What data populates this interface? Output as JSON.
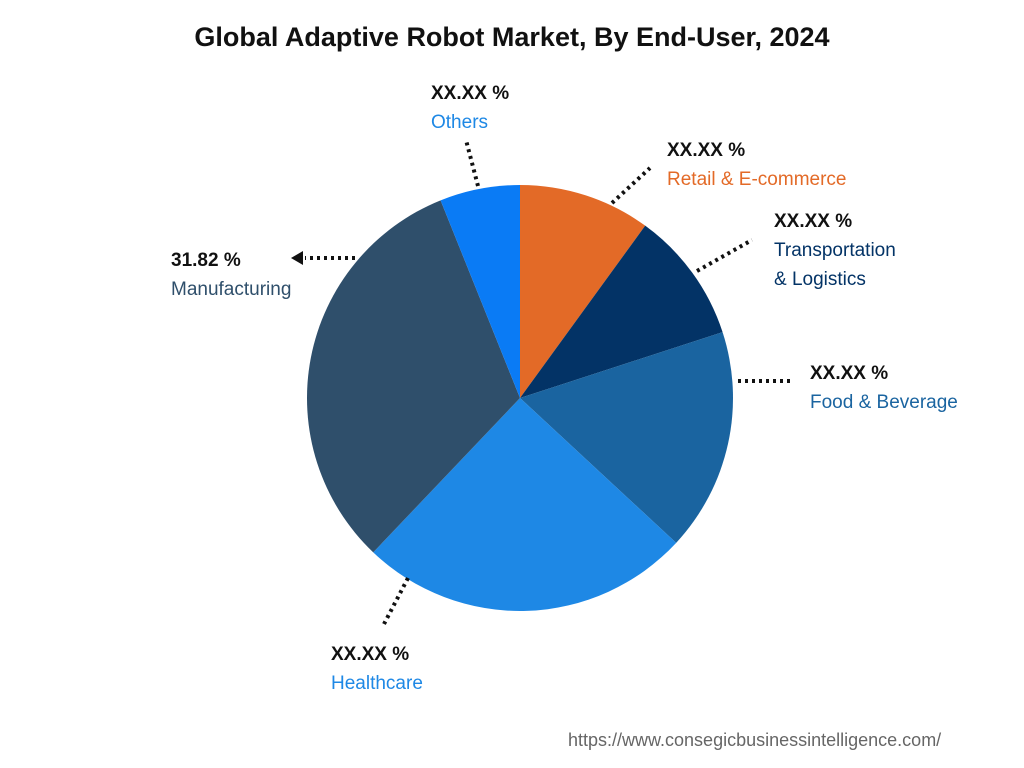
{
  "chart_data": {
    "type": "pie",
    "title": "Global Adaptive Robot Market, By End-User, 2024",
    "slices": [
      {
        "name": "Retail & E-commerce",
        "label": "XX.XX %",
        "value": 10.0,
        "color": "#E36A27"
      },
      {
        "name": "Transportation & Logistics",
        "label": "XX.XX %",
        "value": 10.0,
        "color": "#033366"
      },
      {
        "name": "Food & Beverage",
        "label": "XX.XX %",
        "value": 16.9,
        "color": "#1A64A0"
      },
      {
        "name": "Healthcare",
        "label": "XX.XX %",
        "value": 25.2,
        "color": "#1E88E5"
      },
      {
        "name": "Manufacturing",
        "label": "31.82 %",
        "value": 31.82,
        "color": "#2F4F6B"
      },
      {
        "name": "Others",
        "label": "XX.XX %",
        "value": 6.08,
        "color": "#0A7BF5"
      }
    ],
    "transport_line1": "Transportation",
    "transport_line2": "& Logistics"
  },
  "source": "https://www.consegicbusinessintelligence.com/"
}
